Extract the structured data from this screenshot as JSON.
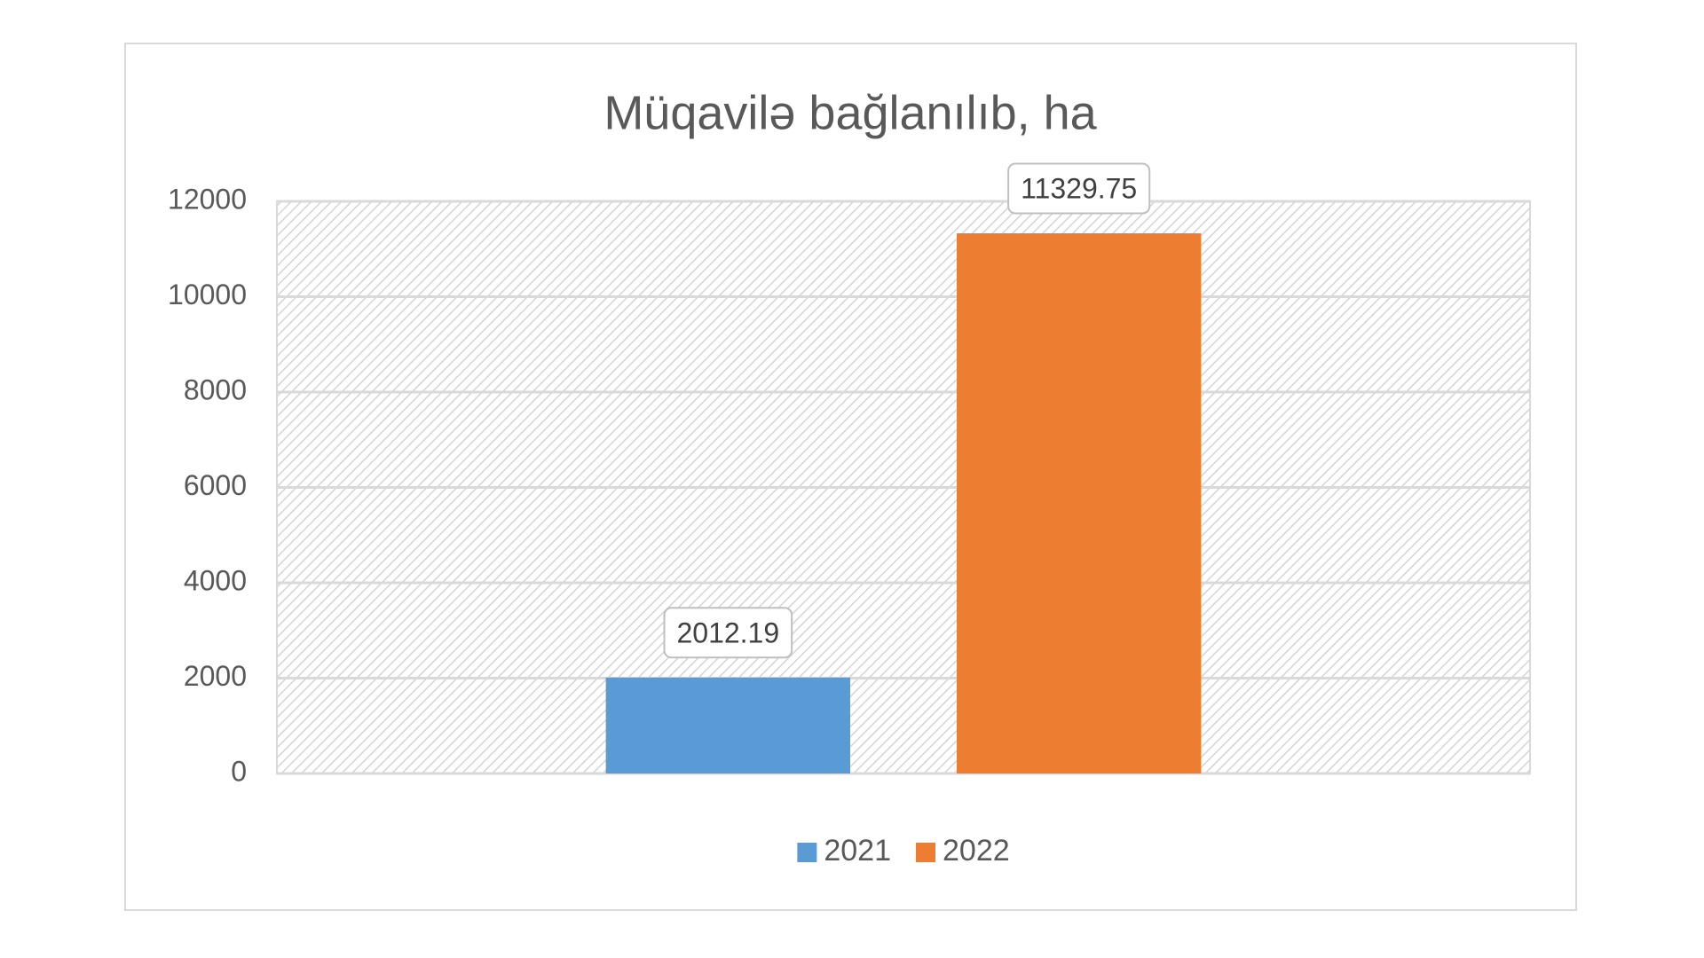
{
  "chart_data": {
    "type": "bar",
    "title": "Müqavilə bağlanılıb, ha",
    "categories": [
      null
    ],
    "series": [
      {
        "name": "2021",
        "color": "#5b9bd5",
        "values": [
          2012.19
        ]
      },
      {
        "name": "2022",
        "color": "#ed7d31",
        "values": [
          11329.75
        ]
      }
    ],
    "ylim": [
      0,
      12000
    ],
    "yticks": [
      0,
      2000,
      4000,
      6000,
      8000,
      10000,
      12000
    ],
    "grid": true,
    "legend": "bottom"
  }
}
